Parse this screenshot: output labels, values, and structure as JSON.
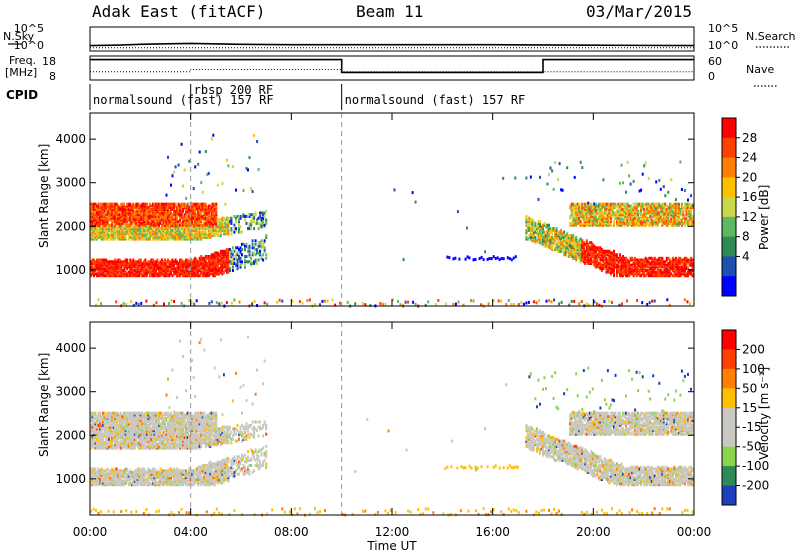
{
  "header": {
    "radar_title": "Adak East (fitACF)",
    "beam_label": "Beam 11",
    "date_label": "03/Mar/2015"
  },
  "strip_labels": {
    "nsky": "N.Sky",
    "nsearch": "N.Search",
    "freq_line1": "Freq.",
    "freq_line2": "[MHz]",
    "nave": "Nave",
    "cpid": "CPID",
    "nsky_ticks": [
      "10^5",
      "10^0"
    ],
    "nsearch_ticks": [
      "10^5",
      "10^0"
    ],
    "freq_ticks": [
      "18",
      "8"
    ],
    "nave_ticks": [
      "60",
      "0"
    ]
  },
  "cpid_segments": [
    {
      "label": "normalsound (fast) 157 RF",
      "start_hour": 0,
      "end_hour": 3.9
    },
    {
      "label": "rbsp 200 RF",
      "start_hour": 4.0,
      "end_hour": 10.0
    },
    {
      "label": "normalsound (fast) 157 RF",
      "start_hour": 10.0,
      "end_hour": 24.0
    }
  ],
  "colors": {
    "power_scale": [
      "#0000ff",
      "#1f4fb0",
      "#2e8b57",
      "#5fb85f",
      "#c8d84a",
      "#ffc000",
      "#ff8000",
      "#ff4000",
      "#ff0000"
    ],
    "velocity_scale": [
      "#1f3fbf",
      "#2e8b57",
      "#8bd34a",
      "#c8c8c0",
      "#c8c8c0",
      "#ffc000",
      "#ff8000",
      "#ff4000",
      "#ff0000"
    ]
  },
  "chart_data": [
    {
      "type": "line",
      "name_label": "N.Sky / N.Search",
      "x_label": "",
      "xlim": [
        0,
        24
      ],
      "series": [
        {
          "name": "N.Sky",
          "style": "solid",
          "x": [
            0,
            1,
            2,
            3,
            4,
            6,
            8,
            10,
            12,
            16,
            20,
            24
          ],
          "y": [
            1.0,
            1.1,
            1.3,
            1.4,
            1.5,
            1.3,
            1.2,
            1.2,
            1.2,
            1.2,
            1.1,
            1.0
          ]
        },
        {
          "name": "N.Search",
          "style": "dotted",
          "x": [
            0,
            4,
            10,
            24
          ],
          "y": [
            0.5,
            0.5,
            0.5,
            0.5
          ]
        }
      ]
    },
    {
      "type": "line",
      "name_label": "Freq. [MHz] / Nave",
      "xlim": [
        0,
        24
      ],
      "series": [
        {
          "name": "Freq. [MHz]",
          "style": "solid",
          "x": [
            0,
            10,
            10,
            18,
            18,
            24
          ],
          "y": [
            16.8,
            16.8,
            11,
            11,
            16.8,
            16.8
          ]
        },
        {
          "name": "Nave",
          "style": "dotted",
          "x": [
            0,
            4,
            4,
            10,
            10,
            24
          ],
          "y": [
            20,
            20,
            26,
            26,
            20,
            20
          ]
        }
      ]
    },
    {
      "type": "heatmap",
      "ylabel": "Slant Range [km]",
      "xlim": [
        0,
        24
      ],
      "ylim": [
        170,
        4600
      ],
      "yticks": [
        "1000",
        "2000",
        "3000",
        "4000"
      ],
      "colorbar_label": "Power [dB]",
      "colorbar_ticks": [
        "28",
        "24",
        "20",
        "16",
        "12",
        "8",
        "4"
      ],
      "dashed_lines_hours": [
        4.0,
        10.0
      ]
    },
    {
      "type": "heatmap",
      "ylabel": "Slant Range [km]",
      "xlim": [
        0,
        24
      ],
      "ylim": [
        170,
        4600
      ],
      "yticks": [
        "1000",
        "2000",
        "3000",
        "4000"
      ],
      "colorbar_label": "Velocity [m s⁻¹]",
      "colorbar_ticks": [
        "200",
        "100",
        "50",
        "15",
        "-15",
        "-50",
        "-100",
        "-200"
      ],
      "dashed_lines_hours": [
        4.0,
        10.0
      ]
    }
  ],
  "x_axis": {
    "ticks": [
      "00:00",
      "04:00",
      "08:00",
      "12:00",
      "16:00",
      "20:00",
      "00:00"
    ],
    "label": "Time UT"
  }
}
